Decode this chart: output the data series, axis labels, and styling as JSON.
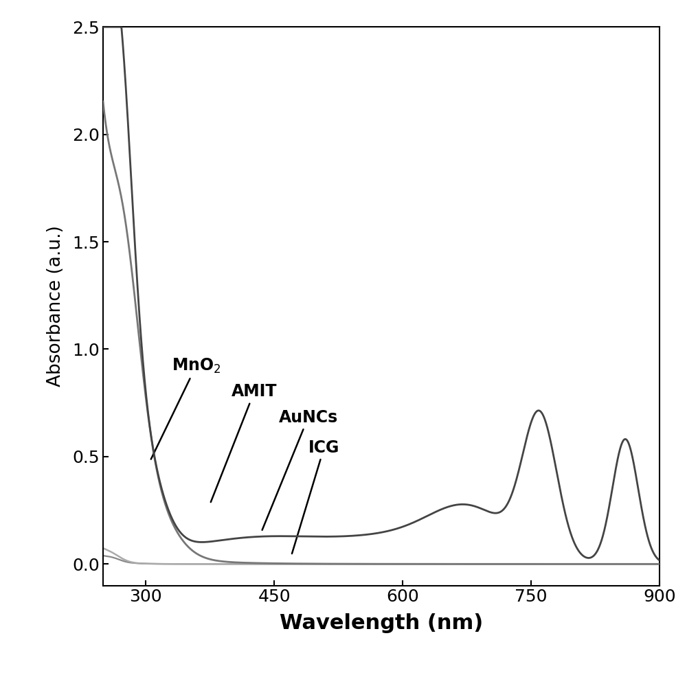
{
  "xlim": [
    250,
    900
  ],
  "ylim": [
    -0.1,
    2.5
  ],
  "xlabel": "Wavelength (nm)",
  "ylabel": "Absorbance (a.u.)",
  "xticks": [
    300,
    450,
    600,
    750,
    900
  ],
  "yticks": [
    0.0,
    0.5,
    1.0,
    1.5,
    2.0,
    2.5
  ],
  "colors": {
    "MnO2": "#777777",
    "AMIT": "#444444",
    "AuNCs": "#aaaaaa",
    "ICG": "#888888"
  },
  "linewidths": {
    "MnO2": 2.0,
    "AMIT": 2.0,
    "AuNCs": 1.8,
    "ICG": 1.6
  }
}
